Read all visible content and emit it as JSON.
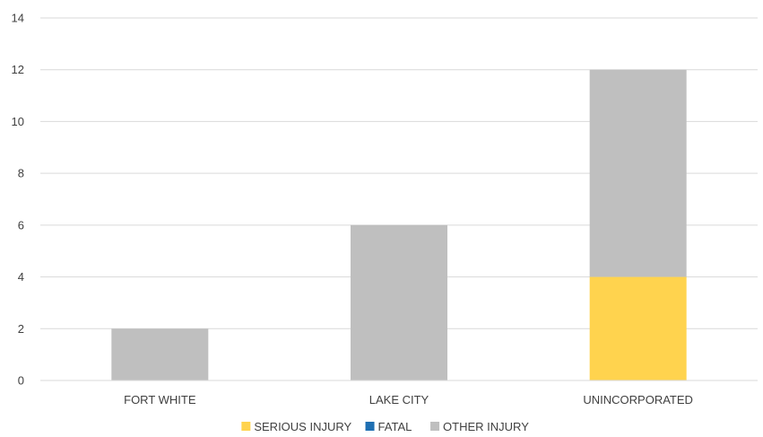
{
  "chart_data": {
    "type": "bar",
    "stacked": true,
    "categories": [
      "FORT WHITE",
      "LAKE CITY",
      "UNINCORPORATED"
    ],
    "series": [
      {
        "name": "SERIOUS INJURY",
        "color": "#FFD34E",
        "values": [
          0,
          0,
          4
        ]
      },
      {
        "name": "FATAL",
        "color": "#1F6FB2",
        "values": [
          0,
          0,
          0
        ]
      },
      {
        "name": "OTHER INJURY",
        "color": "#BFBFBF",
        "values": [
          2,
          6,
          8
        ]
      }
    ],
    "ylim": [
      0,
      14
    ],
    "yticks": [
      0,
      2,
      4,
      6,
      8,
      10,
      12,
      14
    ],
    "grid": true,
    "legend_position": "bottom",
    "title": "",
    "xlabel": "",
    "ylabel": ""
  }
}
